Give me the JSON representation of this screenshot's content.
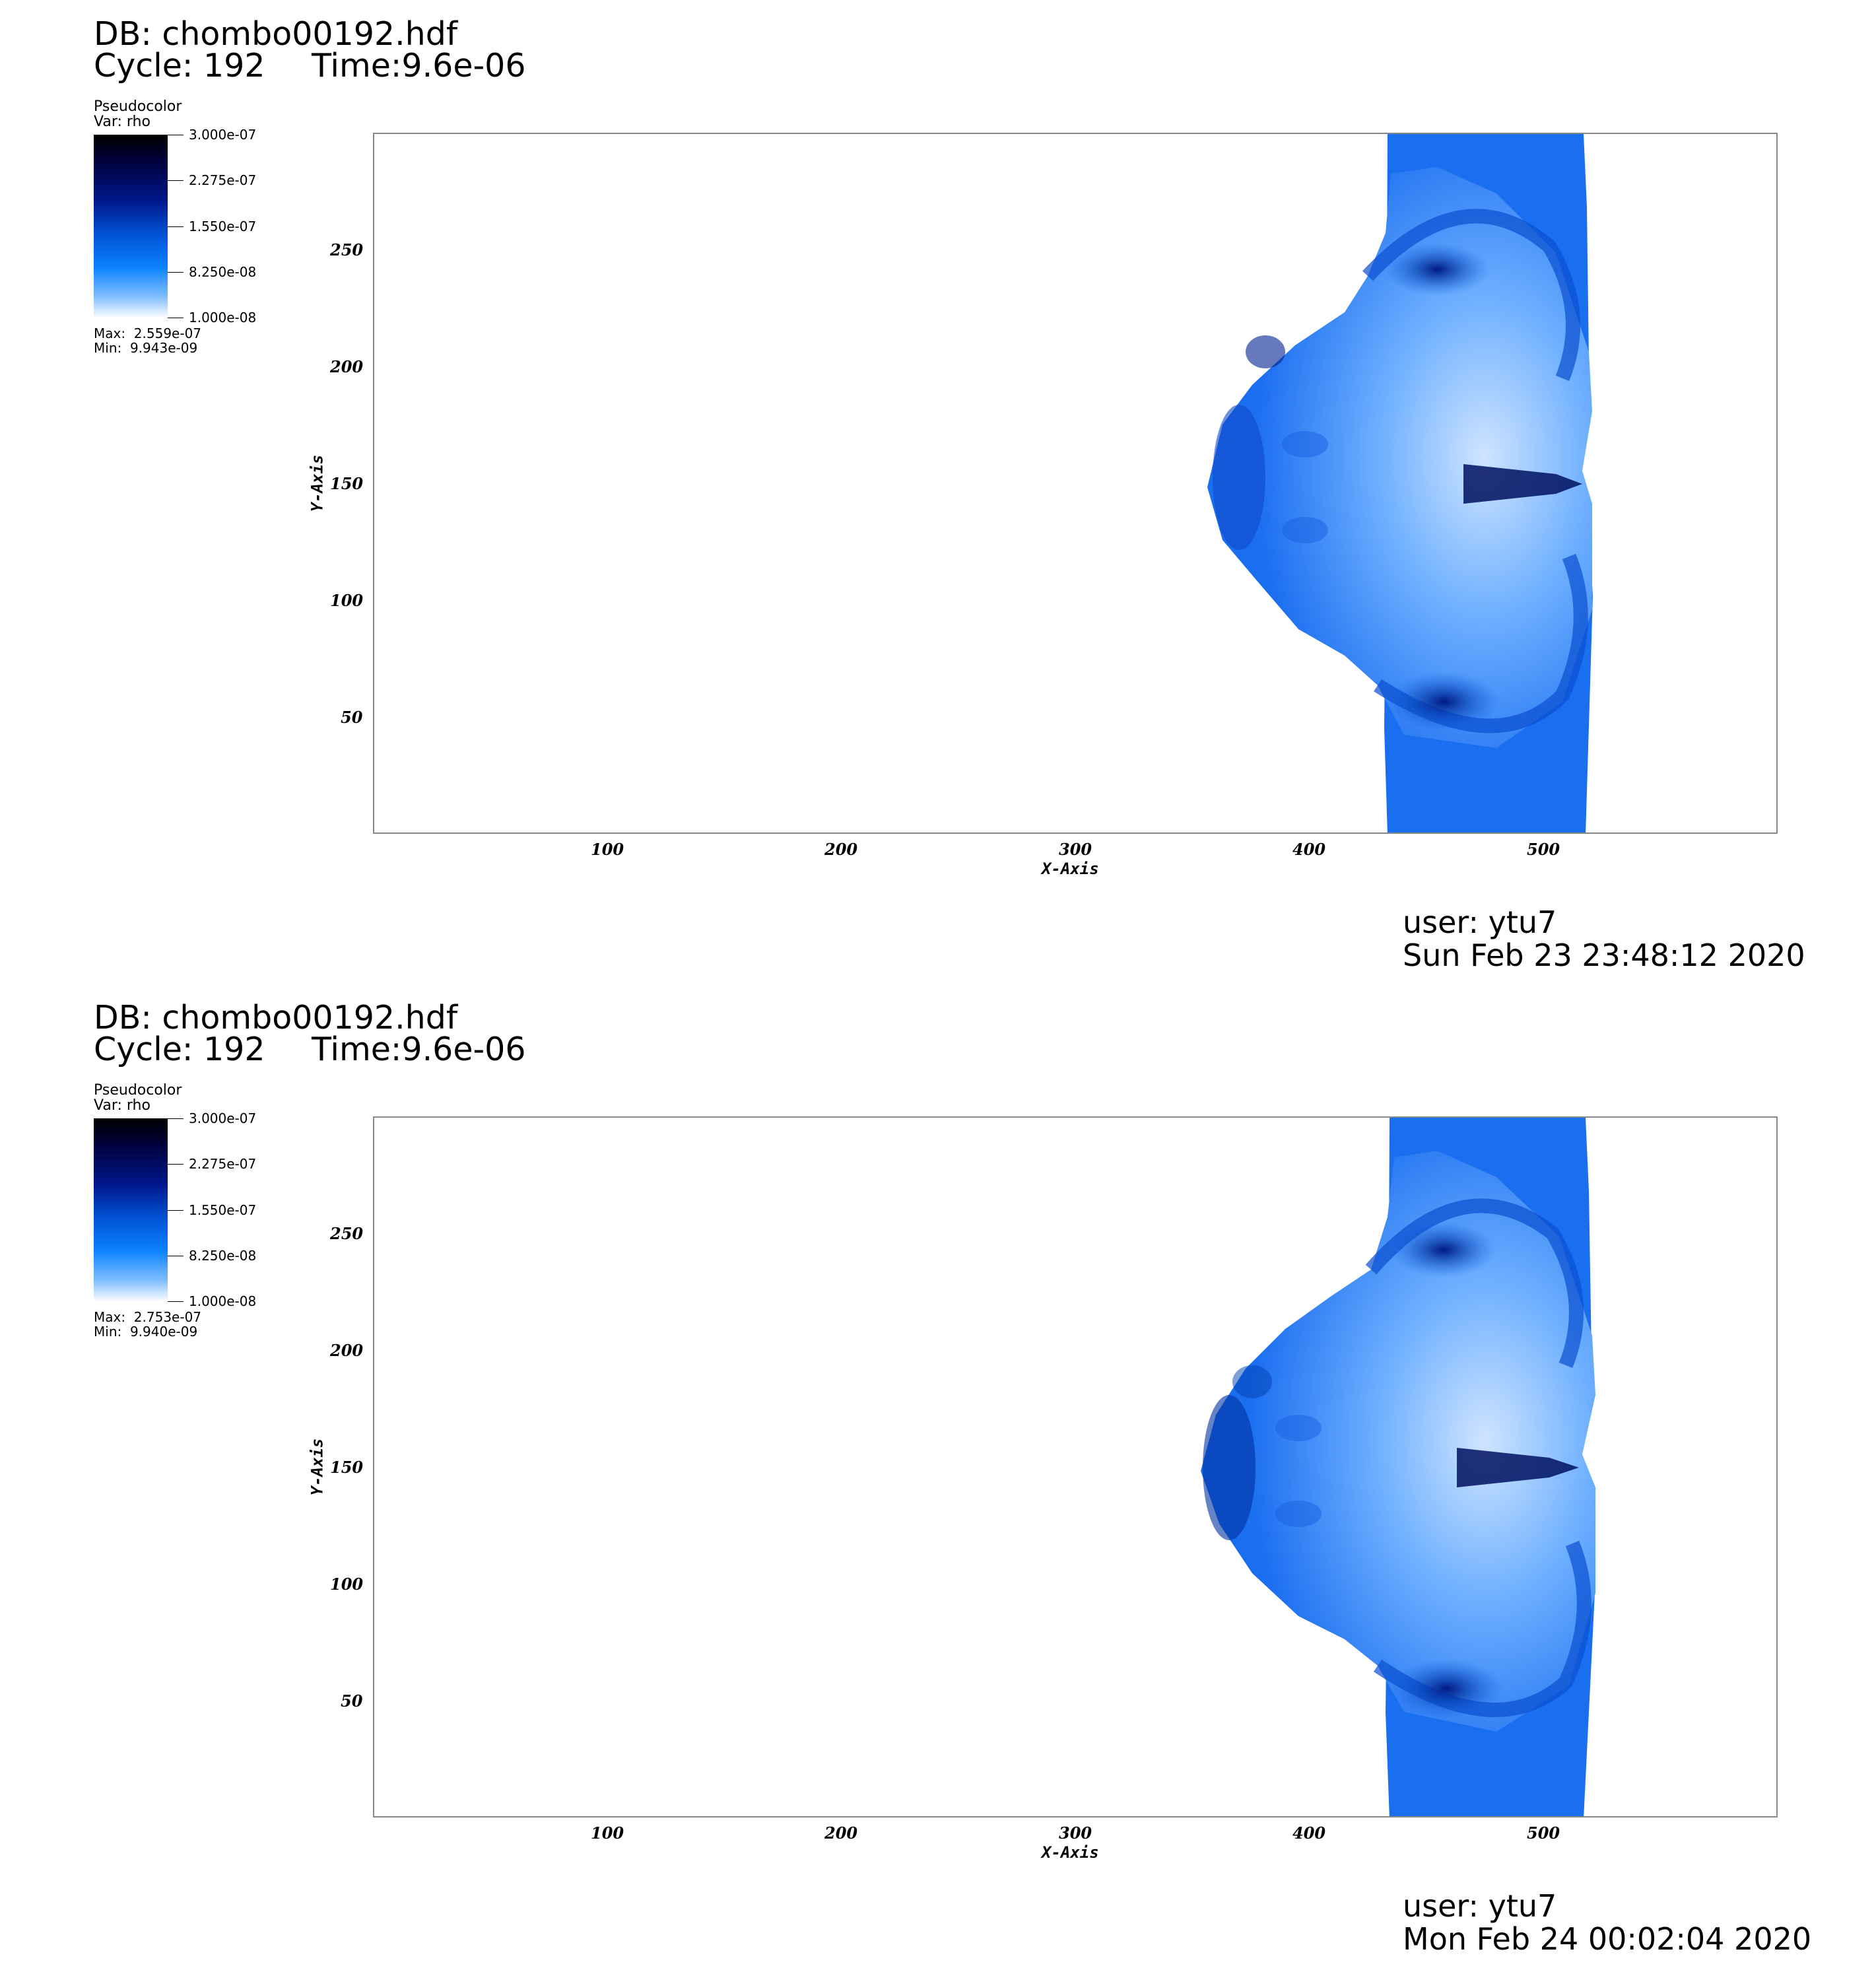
{
  "panels": [
    {
      "db": "DB: chombo00192.hdf",
      "cycle": "Cycle: 192",
      "time": "Time:9.6e-06",
      "legend": {
        "plot_type": "Pseudocolor",
        "var": "Var: rho",
        "ticks": [
          "3.000e-07",
          "2.275e-07",
          "1.550e-07",
          "8.250e-08",
          "1.000e-08"
        ],
        "max": "Max:  2.559e-07",
        "min": "Min:  9.943e-09"
      },
      "x_ticks": [
        "100",
        "200",
        "300",
        "400",
        "500"
      ],
      "y_ticks": [
        "250",
        "200",
        "150",
        "100",
        "50"
      ],
      "xlabel": "X-Axis",
      "ylabel": "Y-Axis",
      "user": "user: ytu7",
      "date": "Sun Feb 23 23:48:12 2020"
    },
    {
      "db": "DB: chombo00192.hdf",
      "cycle": "Cycle: 192",
      "time": "Time:9.6e-06",
      "legend": {
        "plot_type": "Pseudocolor",
        "var": "Var: rho",
        "ticks": [
          "3.000e-07",
          "2.275e-07",
          "1.550e-07",
          "8.250e-08",
          "1.000e-08"
        ],
        "max": "Max:  2.753e-07",
        "min": "Min:  9.940e-09"
      },
      "x_ticks": [
        "100",
        "200",
        "300",
        "400",
        "500"
      ],
      "y_ticks": [
        "250",
        "200",
        "150",
        "100",
        "50"
      ],
      "xlabel": "X-Axis",
      "ylabel": "Y-Axis",
      "user": "user: ytu7",
      "date": "Mon Feb 24 00:02:04 2020"
    }
  ],
  "colors": {
    "field_dark": "#00106e",
    "field_mid": "#0a5fe0",
    "field_light": "#cfe4ff",
    "frame": "#888888"
  }
}
